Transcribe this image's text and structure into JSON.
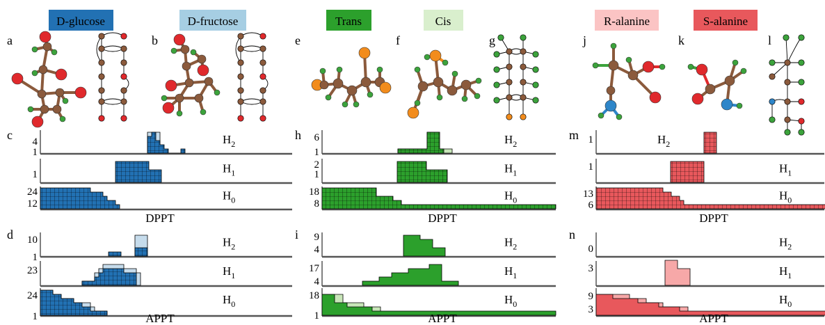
{
  "header_tags": [
    {
      "text": "D-glucose",
      "bg": "#2271b3",
      "fg": "#000000"
    },
    {
      "text": "D-fructose",
      "bg": "#a6cee3",
      "fg": "#000000"
    },
    {
      "text": "Trans",
      "bg": "#2ca02c",
      "fg": "#000000"
    },
    {
      "text": "Cis",
      "bg": "#d9efcd",
      "fg": "#000000"
    },
    {
      "text": "R-alanine",
      "bg": "#fbc4c4",
      "fg": "#000000"
    },
    {
      "text": "S-alanine",
      "bg": "#e8585c",
      "fg": "#000000"
    }
  ],
  "panel_letters": [
    "a",
    "b",
    "c",
    "d",
    "e",
    "f",
    "g",
    "h",
    "i",
    "j",
    "k",
    "l",
    "m",
    "n"
  ],
  "homology_labels": {
    "h2": "H",
    "h2_sub": "2",
    "h1": "H",
    "h1_sub": "1",
    "h0": "H",
    "h0_sub": "0"
  },
  "axis_titles": {
    "dppt": "DPPT",
    "appt": "APPT"
  },
  "tick_labels": {
    "c": {
      "h2": [
        "4",
        "1"
      ],
      "h1": [
        "1"
      ],
      "h0": [
        "24",
        "12"
      ]
    },
    "d": {
      "h2": [
        "10",
        "1"
      ],
      "h1": [
        "23"
      ],
      "h0": [
        "24",
        "1"
      ]
    },
    "h": {
      "h2": [
        "6",
        "1"
      ],
      "h1": [
        "2",
        "1"
      ],
      "h0": [
        "18",
        "8"
      ]
    },
    "i": {
      "h2": [
        "9",
        "4"
      ],
      "h1": [
        "17",
        "4"
      ],
      "h0": [
        "18",
        "1"
      ]
    },
    "m": {
      "h2": [
        "1"
      ],
      "h1": [
        "1"
      ],
      "h0": [
        "13",
        "6"
      ]
    },
    "n": {
      "h2": [
        "0"
      ],
      "h1": [
        "3"
      ],
      "h0": [
        "9",
        "3"
      ]
    }
  },
  "colors": {
    "glucose": "#2271b3",
    "fructose": "#c6dcec",
    "trans": "#2ca02c",
    "cis": "#c8e6b9",
    "r_ala": "#f7a8a8",
    "s_ala": "#e8585c",
    "carbon": "#8b5a3c",
    "oxygen": "#e0292c",
    "hydrogen": "#3ca33c",
    "halogen": "#f28c1c",
    "nitrogen": "#2e86c9"
  }
}
